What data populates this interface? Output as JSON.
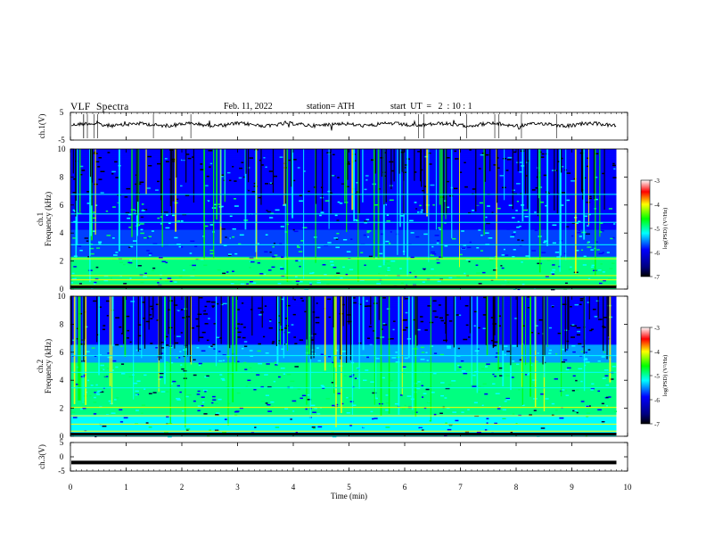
{
  "header": {
    "title": "VLF  Spectra",
    "date": "Feb. 11, 2022",
    "station": "station= ATH",
    "start_ut": "start  UT  =   2  : 10 : 1"
  },
  "chart_data": [
    {
      "id": "ch1-waveform",
      "type": "line",
      "ylabel": "ch.1(V)",
      "ylim": [
        -5,
        5
      ],
      "yticks": [
        5,
        -5
      ],
      "xlim": [
        0,
        10
      ],
      "series": [
        {
          "values_note_level": 0.6
        }
      ],
      "trace_level": 0.6,
      "trace_end_min": 9.8,
      "color": "#000000"
    },
    {
      "id": "ch1-spectrogram",
      "type": "heatmap",
      "ylabel_line1": "ch.1",
      "ylabel_line2": "Frequency  (kHz)",
      "ylim": [
        0,
        10
      ],
      "yticks": [
        0,
        2,
        4,
        6,
        8,
        10
      ],
      "xlim": [
        0,
        10
      ],
      "data_end_min": 9.8,
      "colorbar": {
        "label": "log(PSD) (V²/Hz)",
        "ticks": [
          -3,
          -4,
          -5,
          -6,
          -7
        ],
        "range": [
          -7,
          -3
        ]
      }
    },
    {
      "id": "ch2-spectrogram",
      "type": "heatmap",
      "ylabel_line1": "ch.2",
      "ylabel_line2": "Frequency  (kHz)",
      "ylim": [
        0,
        10
      ],
      "yticks": [
        0,
        2,
        4,
        6,
        8,
        10
      ],
      "xlim": [
        0,
        10
      ],
      "data_end_min": 9.8,
      "colorbar": {
        "label": "log(PSD) (V²/Hz)",
        "ticks": [
          -3,
          -4,
          -5,
          -6,
          -7
        ],
        "range": [
          -7,
          -3
        ]
      }
    },
    {
      "id": "ch3-waveform",
      "type": "line",
      "ylabel": "ch.3(V)",
      "ylim": [
        -5,
        5
      ],
      "yticks": [
        5,
        0,
        -5
      ],
      "xlim": [
        0,
        10
      ],
      "trace_level": -2,
      "trace_end_min": 9.8,
      "xlabel": "Time  (min)",
      "xticks": [
        0,
        1,
        2,
        3,
        4,
        5,
        6,
        7,
        8,
        9,
        10
      ],
      "color": "#000000"
    }
  ],
  "colormap": [
    "#ffffff",
    "#ff0000",
    "#ffff00",
    "#00ff00",
    "#00ffff",
    "#0000ff",
    "#000000"
  ]
}
